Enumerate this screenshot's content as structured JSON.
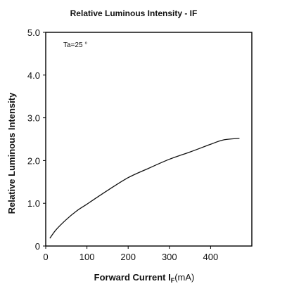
{
  "chart_data": {
    "type": "line",
    "title": "Relative Luminous Intensity - IF",
    "ylabel": "Relative Luminous Intensity",
    "xlabel": {
      "text": "Forward Current I",
      "subscript": "F",
      "unit": "(mA)"
    },
    "xlim": [
      0,
      500
    ],
    "ylim": [
      0,
      5.0
    ],
    "xticks": [
      0,
      100,
      200,
      300,
      400
    ],
    "xtick_labels": [
      "0",
      "100",
      "200",
      "300",
      "400"
    ],
    "yticks": [
      0,
      1,
      2,
      3,
      4,
      5
    ],
    "ytick_labels": [
      "0",
      "1.0",
      "2.0",
      "3.0",
      "4.0",
      "5.0"
    ],
    "grid": false,
    "annotations": [
      {
        "text": "Ta=25 °"
      }
    ],
    "series": [
      {
        "x": [
          10,
          25,
          50,
          75,
          100,
          150,
          200,
          250,
          300,
          350,
          400,
          430,
          470
        ],
        "y": [
          0.18,
          0.38,
          0.62,
          0.82,
          0.98,
          1.3,
          1.6,
          1.82,
          2.03,
          2.2,
          2.38,
          2.48,
          2.52
        ]
      }
    ]
  }
}
